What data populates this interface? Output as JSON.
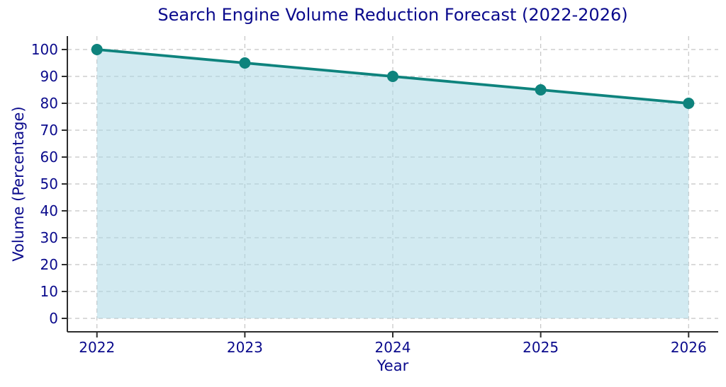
{
  "chart_data": {
    "type": "line",
    "title": "Search Engine Volume Reduction Forecast (2022-2026)",
    "xlabel": "Year",
    "ylabel": "Volume (Percentage)",
    "x": [
      2022,
      2023,
      2024,
      2025,
      2026
    ],
    "xtick_labels": [
      "2022",
      "2023",
      "2024",
      "2025",
      "2026"
    ],
    "series": [
      {
        "name": "Volume",
        "values": [
          100,
          95,
          90,
          85,
          80
        ]
      }
    ],
    "yticks": [
      0,
      10,
      20,
      30,
      40,
      50,
      60,
      70,
      80,
      90,
      100
    ],
    "ytick_labels": [
      "0",
      "10",
      "20",
      "30",
      "40",
      "50",
      "60",
      "70",
      "80",
      "90",
      "100"
    ],
    "ylim": [
      -5,
      105
    ],
    "xlim": [
      2021.8,
      2026.2
    ],
    "grid": true,
    "grid_style": "dashed",
    "legend": false,
    "area_fill": true,
    "area_fill_baseline": 0,
    "marker": "circle",
    "colors": {
      "line": "#0e837d",
      "marker": "#0e837d",
      "area_fill": "rgba(173,216,230,0.55)",
      "label_text": "#0a0a8c",
      "grid": "#c4c4c4",
      "spine": "#2e2e2e",
      "tick": "#2e2e2e"
    }
  }
}
